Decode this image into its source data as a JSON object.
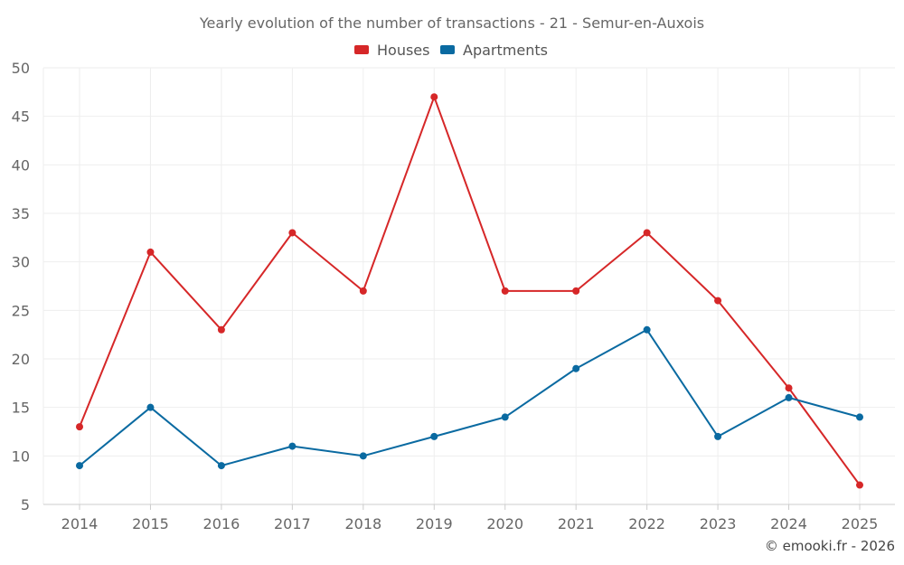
{
  "chart_data": {
    "type": "line",
    "title": "Yearly evolution of the number of transactions - 21 - Semur-en-Auxois",
    "categories": [
      "2014",
      "2015",
      "2016",
      "2017",
      "2018",
      "2019",
      "2020",
      "2021",
      "2022",
      "2023",
      "2024",
      "2025"
    ],
    "series": [
      {
        "name": "Houses",
        "color": "#d62728",
        "values": [
          13,
          31,
          23,
          33,
          27,
          47,
          27,
          27,
          33,
          26,
          17,
          7
        ]
      },
      {
        "name": "Apartments",
        "color": "#0a6aa1",
        "values": [
          9,
          15,
          9,
          11,
          10,
          12,
          14,
          19,
          23,
          12,
          16,
          14
        ]
      }
    ],
    "ylim": [
      5,
      50
    ],
    "yticks": [
      5,
      10,
      15,
      20,
      25,
      30,
      35,
      40,
      45,
      50
    ],
    "grid": true,
    "legend_position": "top-center",
    "xlabel": "",
    "ylabel": ""
  },
  "credit": "© emooki.fr - 2026"
}
